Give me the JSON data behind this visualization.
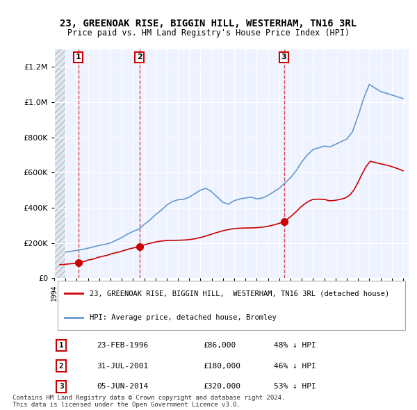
{
  "title": "23, GREENOAK RISE, BIGGIN HILL, WESTERHAM, TN16 3RL",
  "subtitle": "Price paid vs. HM Land Registry's House Price Index (HPI)",
  "legend_line1": "23, GREENOAK RISE, BIGGIN HILL,  WESTERHAM, TN16 3RL (detached house)",
  "legend_line2": "HPI: Average price, detached house, Bromley",
  "ylabel": "",
  "sale_dates": [
    1996.14,
    2001.58,
    2014.42
  ],
  "sale_prices": [
    86000,
    180000,
    320000
  ],
  "sale_labels": [
    "1",
    "2",
    "3"
  ],
  "footer": "Contains HM Land Registry data © Crown copyright and database right 2024.\nThis data is licensed under the Open Government Licence v3.0.",
  "table_rows": [
    [
      "1",
      "23-FEB-1996",
      "£86,000",
      "48% ↓ HPI"
    ],
    [
      "2",
      "31-JUL-2001",
      "£180,000",
      "46% ↓ HPI"
    ],
    [
      "3",
      "05-JUN-2014",
      "£320,000",
      "53% ↓ HPI"
    ]
  ],
  "hpi_color": "#6699cc",
  "sale_color": "#cc0000",
  "background_plot": "#eef3ff",
  "background_hatch": "#dde3ee",
  "ylim": [
    0,
    1300000
  ],
  "xlim_start": 1994.0,
  "xlim_end": 2025.5
}
